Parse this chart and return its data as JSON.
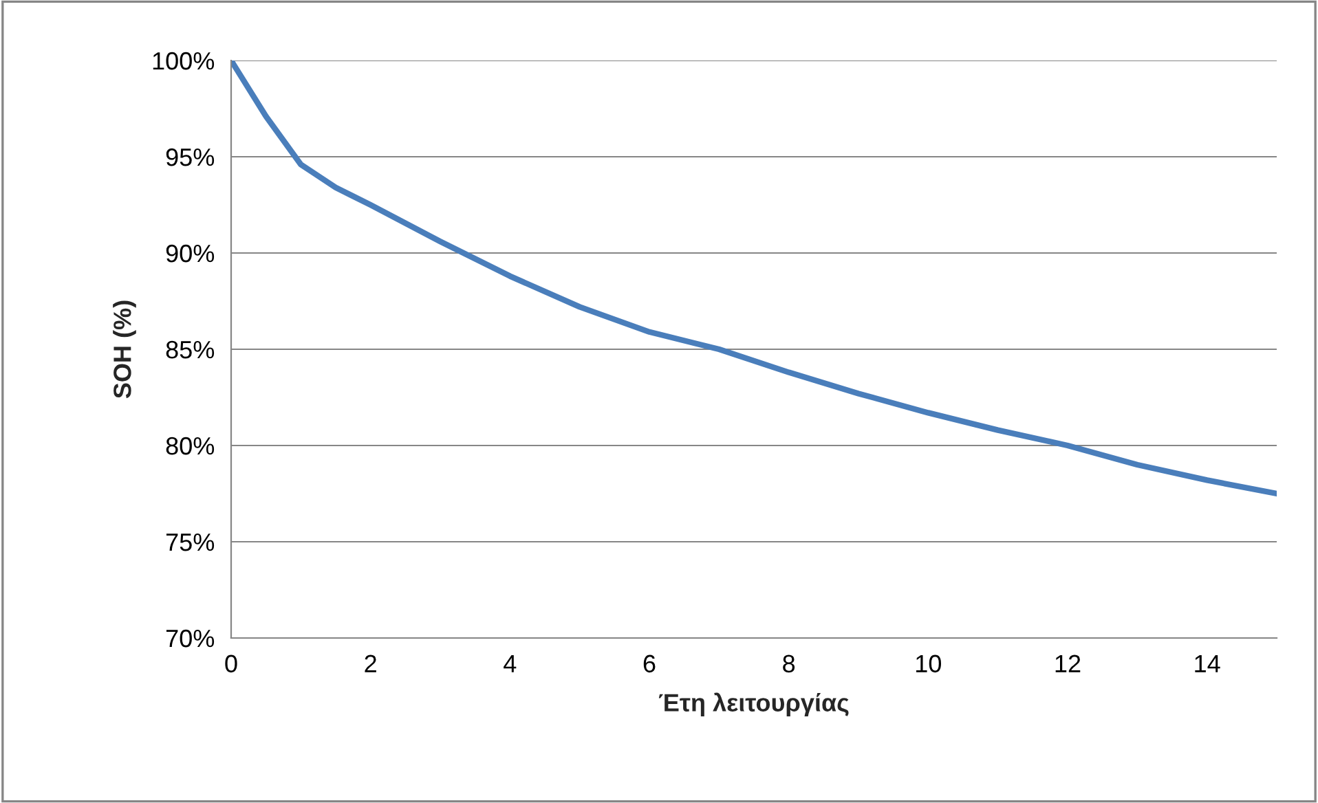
{
  "chart_data": {
    "type": "line",
    "xlabel": "Έτη λειτουργίας",
    "ylabel": "SOH (%)",
    "x": [
      0,
      0.5,
      1,
      1.5,
      2,
      3,
      4,
      5,
      6,
      7,
      8,
      9,
      10,
      11,
      12,
      13,
      14,
      15
    ],
    "series": [
      {
        "color": "#4a7ebb",
        "values": [
          100,
          97.1,
          94.6,
          93.4,
          92.5,
          90.6,
          88.8,
          87.2,
          85.9,
          85.0,
          83.8,
          82.7,
          81.7,
          80.8,
          80.0,
          79.0,
          78.2,
          77.5
        ]
      }
    ],
    "xlim": [
      0,
      15
    ],
    "xticks": [
      0,
      2,
      4,
      6,
      8,
      10,
      12,
      14
    ],
    "ylim": [
      70,
      100
    ],
    "yticks": [
      {
        "value": 70,
        "label": "70%"
      },
      {
        "value": 75,
        "label": "75%"
      },
      {
        "value": 80,
        "label": "80%"
      },
      {
        "value": 85,
        "label": "85%"
      },
      {
        "value": 90,
        "label": "90%"
      },
      {
        "value": 95,
        "label": "95%"
      },
      {
        "value": 100,
        "label": "100%"
      }
    ],
    "grid": "y",
    "marker": "none",
    "line_style": "solid"
  }
}
